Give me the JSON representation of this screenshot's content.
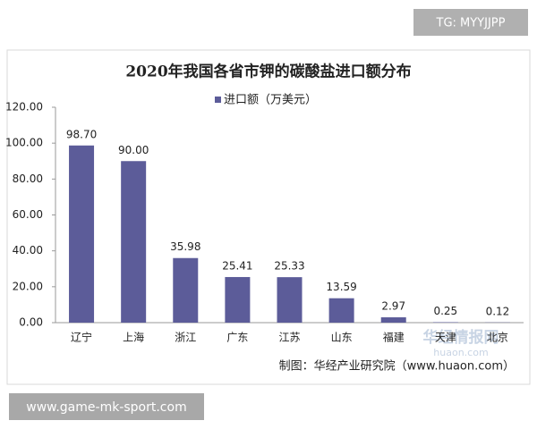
{
  "chart_data": {
    "type": "bar",
    "title": "2020年我国各省市钾的碳酸盐进口额分布",
    "categories": [
      "辽宁",
      "上海",
      "浙江",
      "广东",
      "江苏",
      "山东",
      "福建",
      "天津",
      "北京"
    ],
    "series": [
      {
        "name": "进口额（万美元）",
        "color": "#5c5c99",
        "values": [
          98.7,
          90,
          35.98,
          25.41,
          25.33,
          13.59,
          2.97,
          0.25,
          0.12
        ],
        "value_labels": [
          "98.70",
          "90.00",
          "35.98",
          "25.41",
          "25.33",
          "13.59",
          "2.97",
          "0.25",
          "0.12"
        ]
      }
    ],
    "ylim": [
      0,
      120
    ],
    "yticks": [
      {
        "value": 0,
        "label": "0.00"
      },
      {
        "value": 20,
        "label": "20.00"
      },
      {
        "value": 40,
        "label": "40.00"
      },
      {
        "value": 60,
        "label": "60.00"
      },
      {
        "value": 80,
        "label": "80.00"
      },
      {
        "value": 100,
        "label": "100.00"
      },
      {
        "value": 120,
        "label": "120.00"
      }
    ],
    "grid": false,
    "legend": "top",
    "source": "制图：华经产业研究院（www.huaon.com）",
    "watermarks": [
      "TG: MYYJJPP",
      "www.game-mk-sport.com",
      "华经情报网",
      "huaon.com"
    ]
  }
}
